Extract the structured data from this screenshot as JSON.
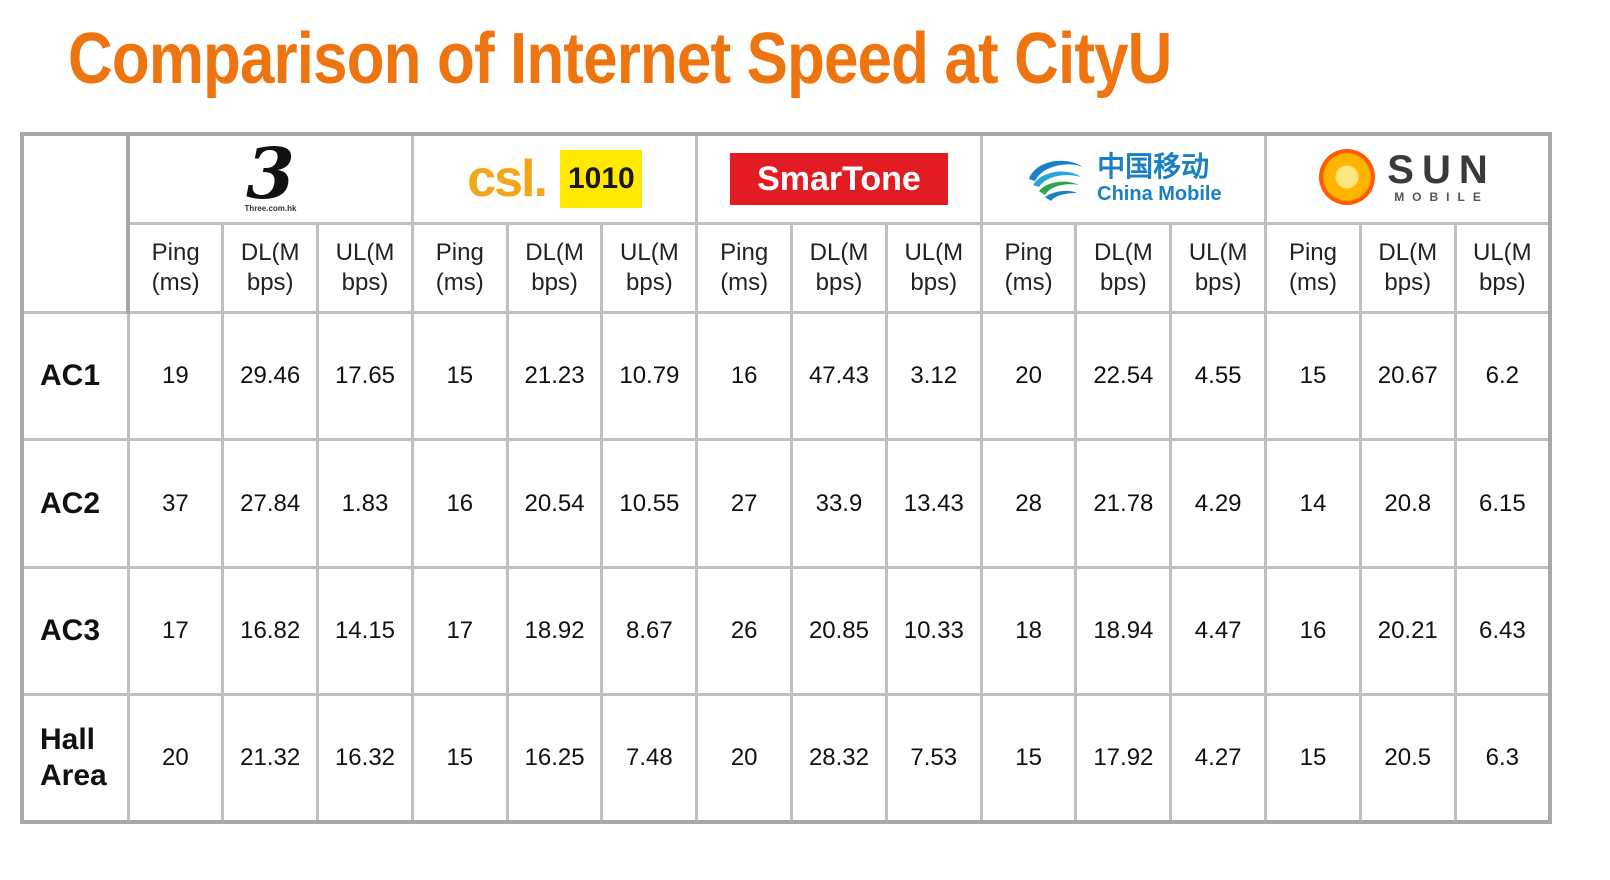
{
  "title": "Comparison of Internet Speed at CityU",
  "operators": [
    {
      "name": "3",
      "logo_icon": "three-hk-logo",
      "logo_small": "Three.com.hk"
    },
    {
      "name": "csl. 1010",
      "logo_icon": "csl-1010-logo",
      "csl": "csl.",
      "box": "1010"
    },
    {
      "name": "SmarTone",
      "logo_icon": "smartone-logo",
      "text": "SmarTone"
    },
    {
      "name": "China Mobile",
      "logo_icon": "china-mobile-logo",
      "cn": "中国移动",
      "en": "China Mobile"
    },
    {
      "name": "SUN MOBILE",
      "logo_icon": "sun-mobile-logo",
      "main": "SUN",
      "sub": "MOBILE"
    }
  ],
  "metrics": [
    {
      "l1": "Ping",
      "l2": "(ms)"
    },
    {
      "l1": "DL(M",
      "l2": "bps)"
    },
    {
      "l1": "UL(M",
      "l2": "bps)"
    }
  ],
  "rows": [
    {
      "label": "AC1",
      "values": [
        "19",
        "29.46",
        "17.65",
        "15",
        "21.23",
        "10.79",
        "16",
        "47.43",
        "3.12",
        "20",
        "22.54",
        "4.55",
        "15",
        "20.67",
        "6.2"
      ]
    },
    {
      "label": "AC2",
      "values": [
        "37",
        "27.84",
        "1.83",
        "16",
        "20.54",
        "10.55",
        "27",
        "33.9",
        "13.43",
        "28",
        "21.78",
        "4.29",
        "14",
        "20.8",
        "6.15"
      ]
    },
    {
      "label": "AC3",
      "values": [
        "17",
        "16.82",
        "14.15",
        "17",
        "18.92",
        "8.67",
        "26",
        "20.85",
        "10.33",
        "18",
        "18.94",
        "4.47",
        "16",
        "20.21",
        "6.43"
      ]
    },
    {
      "label": "Hall Area",
      "values": [
        "20",
        "21.32",
        "16.32",
        "15",
        "16.25",
        "7.48",
        "20",
        "28.32",
        "7.53",
        "15",
        "17.92",
        "4.27",
        "15",
        "20.5",
        "6.3"
      ]
    }
  ],
  "colors": {
    "title": "#ee7410",
    "grid_border": "#bfbfbf",
    "smartone_red": "#e31b23",
    "csl_orange": "#f2a71b",
    "yellow_1010": "#ffea00",
    "china_mobile_blue": "#1b7fc4"
  }
}
